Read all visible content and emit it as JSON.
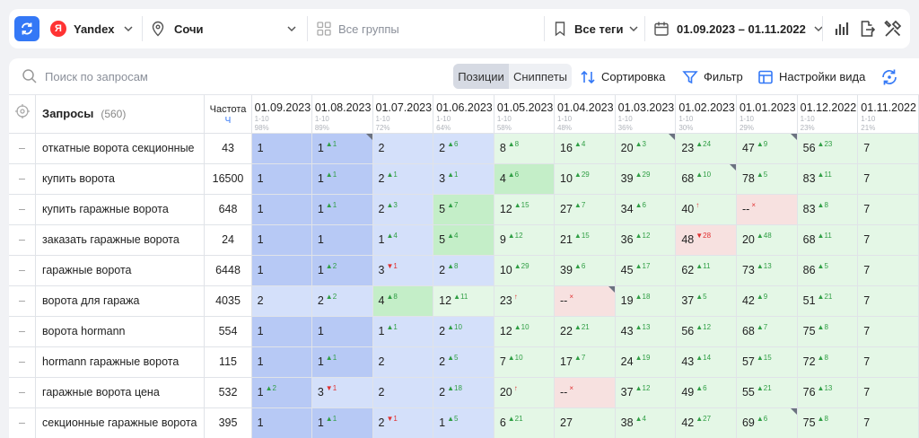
{
  "topbar": {
    "engine": "Yandex",
    "engine_logo": "Я",
    "region": "Сочи",
    "groups": "Все группы",
    "tags": "Все теги",
    "date_range": "01.09.2023 – 01.11.2022"
  },
  "toolbar": {
    "search_placeholder": "Поиск по запросам",
    "positions": "Позиции",
    "snippets": "Сниппеты",
    "sort": "Сортировка",
    "filter": "Фильтр",
    "view_settings": "Настройки вида"
  },
  "table": {
    "query_header": "Запросы",
    "query_count": "(560)",
    "freq_header": "Частота",
    "freq_sub": "Ч",
    "dates": [
      {
        "date": "01.09.2023",
        "range": "1-10",
        "pct": "98%"
      },
      {
        "date": "01.08.2023",
        "range": "1-10",
        "pct": "89%"
      },
      {
        "date": "01.07.2023",
        "range": "1-10",
        "pct": "72%"
      },
      {
        "date": "01.06.2023",
        "range": "1-10",
        "pct": "64%"
      },
      {
        "date": "01.05.2023",
        "range": "1-10",
        "pct": "58%"
      },
      {
        "date": "01.04.2023",
        "range": "1-10",
        "pct": "48%"
      },
      {
        "date": "01.03.2023",
        "range": "1-10",
        "pct": "36%"
      },
      {
        "date": "01.02.2023",
        "range": "1-10",
        "pct": "30%"
      },
      {
        "date": "01.01.2023",
        "range": "1-10",
        "pct": "29%"
      },
      {
        "date": "01.12.2022",
        "range": "1-10",
        "pct": "23%"
      },
      {
        "date": "01.11.2022",
        "range": "1-10",
        "pct": "21%"
      }
    ],
    "rows": [
      {
        "dash": "–",
        "query": "откатные ворота секционные",
        "freq": "43",
        "cells": [
          {
            "v": "1",
            "d": "",
            "dir": "",
            "bg": 1
          },
          {
            "v": "1",
            "d": "▲1",
            "dir": "up",
            "bg": 1,
            "corner": true
          },
          {
            "v": "2",
            "d": "",
            "dir": "",
            "bg": 2
          },
          {
            "v": "2",
            "d": "▲6",
            "dir": "up",
            "bg": 2
          },
          {
            "v": "8",
            "d": "▲8",
            "dir": "up",
            "bg": 4
          },
          {
            "v": "16",
            "d": "▲4",
            "dir": "up",
            "bg": 4
          },
          {
            "v": "20",
            "d": "▲3",
            "dir": "up",
            "bg": 4,
            "corner": true
          },
          {
            "v": "23",
            "d": "▲24",
            "dir": "up",
            "bg": 4
          },
          {
            "v": "47",
            "d": "▲9",
            "dir": "up",
            "bg": 4,
            "corner": true
          },
          {
            "v": "56",
            "d": "▲23",
            "dir": "up",
            "bg": 4
          },
          {
            "v": "7",
            "d": "",
            "dir": "",
            "bg": 4
          }
        ]
      },
      {
        "dash": "–",
        "query": "купить ворота",
        "freq": "16500",
        "cells": [
          {
            "v": "1",
            "d": "",
            "dir": "",
            "bg": 1
          },
          {
            "v": "1",
            "d": "▲1",
            "dir": "up",
            "bg": 1
          },
          {
            "v": "2",
            "d": "▲1",
            "dir": "up",
            "bg": 2
          },
          {
            "v": "3",
            "d": "▲1",
            "dir": "up",
            "bg": 2
          },
          {
            "v": "4",
            "d": "▲6",
            "dir": "up",
            "bg": 3
          },
          {
            "v": "10",
            "d": "▲29",
            "dir": "up",
            "bg": 4
          },
          {
            "v": "39",
            "d": "▲29",
            "dir": "up",
            "bg": 4
          },
          {
            "v": "68",
            "d": "▲10",
            "dir": "up",
            "bg": 4,
            "corner": true
          },
          {
            "v": "78",
            "d": "▲5",
            "dir": "up",
            "bg": 4
          },
          {
            "v": "83",
            "d": "▲11",
            "dir": "up",
            "bg": 4
          },
          {
            "v": "7",
            "d": "",
            "dir": "",
            "bg": 4
          }
        ]
      },
      {
        "dash": "–",
        "query": "купить гаражные ворота",
        "freq": "648",
        "cells": [
          {
            "v": "1",
            "d": "",
            "dir": "",
            "bg": 1
          },
          {
            "v": "1",
            "d": "▲1",
            "dir": "up",
            "bg": 1
          },
          {
            "v": "2",
            "d": "▲3",
            "dir": "up",
            "bg": 2
          },
          {
            "v": "5",
            "d": "▲7",
            "dir": "up",
            "bg": 3
          },
          {
            "v": "12",
            "d": "▲15",
            "dir": "up",
            "bg": 4
          },
          {
            "v": "27",
            "d": "▲7",
            "dir": "up",
            "bg": 4
          },
          {
            "v": "34",
            "d": "▲6",
            "dir": "up",
            "bg": 4
          },
          {
            "v": "40",
            "d": "↑",
            "dir": "neu",
            "bg": 4
          },
          {
            "v": "--",
            "d": "×",
            "dir": "neu",
            "bg": 5
          },
          {
            "v": "83",
            "d": "▲8",
            "dir": "up",
            "bg": 4
          },
          {
            "v": "7",
            "d": "",
            "dir": "",
            "bg": 4
          }
        ]
      },
      {
        "dash": "–",
        "query": "заказать гаражные ворота",
        "freq": "24",
        "cells": [
          {
            "v": "1",
            "d": "",
            "dir": "",
            "bg": 1
          },
          {
            "v": "1",
            "d": "",
            "dir": "",
            "bg": 1
          },
          {
            "v": "1",
            "d": "▲4",
            "dir": "up",
            "bg": 2
          },
          {
            "v": "5",
            "d": "▲4",
            "dir": "up",
            "bg": 3
          },
          {
            "v": "9",
            "d": "▲12",
            "dir": "up",
            "bg": 4
          },
          {
            "v": "21",
            "d": "▲15",
            "dir": "up",
            "bg": 4
          },
          {
            "v": "36",
            "d": "▲12",
            "dir": "up",
            "bg": 4
          },
          {
            "v": "48",
            "d": "▼28",
            "dir": "down",
            "bg": 5
          },
          {
            "v": "20",
            "d": "▲48",
            "dir": "up",
            "bg": 4
          },
          {
            "v": "68",
            "d": "▲11",
            "dir": "up",
            "bg": 4
          },
          {
            "v": "7",
            "d": "",
            "dir": "",
            "bg": 4
          }
        ]
      },
      {
        "dash": "–",
        "query": "гаражные ворота",
        "freq": "6448",
        "cells": [
          {
            "v": "1",
            "d": "",
            "dir": "",
            "bg": 1
          },
          {
            "v": "1",
            "d": "▲2",
            "dir": "up",
            "bg": 1
          },
          {
            "v": "3",
            "d": "▼1",
            "dir": "down",
            "bg": 2
          },
          {
            "v": "2",
            "d": "▲8",
            "dir": "up",
            "bg": 2
          },
          {
            "v": "10",
            "d": "▲29",
            "dir": "up",
            "bg": 4
          },
          {
            "v": "39",
            "d": "▲6",
            "dir": "up",
            "bg": 4
          },
          {
            "v": "45",
            "d": "▲17",
            "dir": "up",
            "bg": 4
          },
          {
            "v": "62",
            "d": "▲11",
            "dir": "up",
            "bg": 4
          },
          {
            "v": "73",
            "d": "▲13",
            "dir": "up",
            "bg": 4
          },
          {
            "v": "86",
            "d": "▲5",
            "dir": "up",
            "bg": 4
          },
          {
            "v": "7",
            "d": "",
            "dir": "",
            "bg": 4
          }
        ]
      },
      {
        "dash": "–",
        "query": "ворота для гаража",
        "freq": "4035",
        "cells": [
          {
            "v": "2",
            "d": "",
            "dir": "",
            "bg": 2
          },
          {
            "v": "2",
            "d": "▲2",
            "dir": "up",
            "bg": 2
          },
          {
            "v": "4",
            "d": "▲8",
            "dir": "up",
            "bg": 3
          },
          {
            "v": "12",
            "d": "▲11",
            "dir": "up",
            "bg": 4
          },
          {
            "v": "23",
            "d": "↑",
            "dir": "neu",
            "bg": 4
          },
          {
            "v": "--",
            "d": "×",
            "dir": "neu",
            "bg": 5,
            "corner": true
          },
          {
            "v": "19",
            "d": "▲18",
            "dir": "up",
            "bg": 4
          },
          {
            "v": "37",
            "d": "▲5",
            "dir": "up",
            "bg": 4
          },
          {
            "v": "42",
            "d": "▲9",
            "dir": "up",
            "bg": 4
          },
          {
            "v": "51",
            "d": "▲21",
            "dir": "up",
            "bg": 4
          },
          {
            "v": "7",
            "d": "",
            "dir": "",
            "bg": 4
          }
        ]
      },
      {
        "dash": "–",
        "query": "ворота hormann",
        "freq": "554",
        "cells": [
          {
            "v": "1",
            "d": "",
            "dir": "",
            "bg": 1
          },
          {
            "v": "1",
            "d": "",
            "dir": "",
            "bg": 1
          },
          {
            "v": "1",
            "d": "▲1",
            "dir": "up",
            "bg": 2
          },
          {
            "v": "2",
            "d": "▲10",
            "dir": "up",
            "bg": 2
          },
          {
            "v": "12",
            "d": "▲10",
            "dir": "up",
            "bg": 4
          },
          {
            "v": "22",
            "d": "▲21",
            "dir": "up",
            "bg": 4
          },
          {
            "v": "43",
            "d": "▲13",
            "dir": "up",
            "bg": 4
          },
          {
            "v": "56",
            "d": "▲12",
            "dir": "up",
            "bg": 4
          },
          {
            "v": "68",
            "d": "▲7",
            "dir": "up",
            "bg": 4
          },
          {
            "v": "75",
            "d": "▲8",
            "dir": "up",
            "bg": 4
          },
          {
            "v": "7",
            "d": "",
            "dir": "",
            "bg": 4
          }
        ]
      },
      {
        "dash": "–",
        "query": "hormann гаражные ворота",
        "freq": "115",
        "cells": [
          {
            "v": "1",
            "d": "",
            "dir": "",
            "bg": 1
          },
          {
            "v": "1",
            "d": "▲1",
            "dir": "up",
            "bg": 1
          },
          {
            "v": "2",
            "d": "",
            "dir": "",
            "bg": 2
          },
          {
            "v": "2",
            "d": "▲5",
            "dir": "up",
            "bg": 2
          },
          {
            "v": "7",
            "d": "▲10",
            "dir": "up",
            "bg": 4
          },
          {
            "v": "17",
            "d": "▲7",
            "dir": "up",
            "bg": 4
          },
          {
            "v": "24",
            "d": "▲19",
            "dir": "up",
            "bg": 4
          },
          {
            "v": "43",
            "d": "▲14",
            "dir": "up",
            "bg": 4
          },
          {
            "v": "57",
            "d": "▲15",
            "dir": "up",
            "bg": 4
          },
          {
            "v": "72",
            "d": "▲8",
            "dir": "up",
            "bg": 4
          },
          {
            "v": "7",
            "d": "",
            "dir": "",
            "bg": 4
          }
        ]
      },
      {
        "dash": "–",
        "query": "гаражные ворота цена",
        "freq": "532",
        "cells": [
          {
            "v": "1",
            "d": "▲2",
            "dir": "up",
            "bg": 1
          },
          {
            "v": "3",
            "d": "▼1",
            "dir": "down",
            "bg": 2
          },
          {
            "v": "2",
            "d": "",
            "dir": "",
            "bg": 2
          },
          {
            "v": "2",
            "d": "▲18",
            "dir": "up",
            "bg": 2
          },
          {
            "v": "20",
            "d": "↑",
            "dir": "neu",
            "bg": 4
          },
          {
            "v": "--",
            "d": "×",
            "dir": "neu",
            "bg": 5
          },
          {
            "v": "37",
            "d": "▲12",
            "dir": "up",
            "bg": 4
          },
          {
            "v": "49",
            "d": "▲6",
            "dir": "up",
            "bg": 4
          },
          {
            "v": "55",
            "d": "▲21",
            "dir": "up",
            "bg": 4
          },
          {
            "v": "76",
            "d": "▲13",
            "dir": "up",
            "bg": 4
          },
          {
            "v": "7",
            "d": "",
            "dir": "",
            "bg": 4
          }
        ]
      },
      {
        "dash": "–",
        "query": "секционные гаражные ворота",
        "freq": "395",
        "cells": [
          {
            "v": "1",
            "d": "",
            "dir": "",
            "bg": 1
          },
          {
            "v": "1",
            "d": "▲1",
            "dir": "up",
            "bg": 1
          },
          {
            "v": "2",
            "d": "▼1",
            "dir": "down",
            "bg": 2
          },
          {
            "v": "1",
            "d": "▲5",
            "dir": "up",
            "bg": 2
          },
          {
            "v": "6",
            "d": "▲21",
            "dir": "up",
            "bg": 4
          },
          {
            "v": "27",
            "d": "",
            "dir": "",
            "bg": 4
          },
          {
            "v": "38",
            "d": "▲4",
            "dir": "up",
            "bg": 4
          },
          {
            "v": "42",
            "d": "▲27",
            "dir": "up",
            "bg": 4
          },
          {
            "v": "69",
            "d": "▲6",
            "dir": "up",
            "bg": 4,
            "corner": true
          },
          {
            "v": "75",
            "d": "▲8",
            "dir": "up",
            "bg": 4
          },
          {
            "v": "7",
            "d": "",
            "dir": "",
            "bg": 4
          }
        ]
      }
    ]
  }
}
